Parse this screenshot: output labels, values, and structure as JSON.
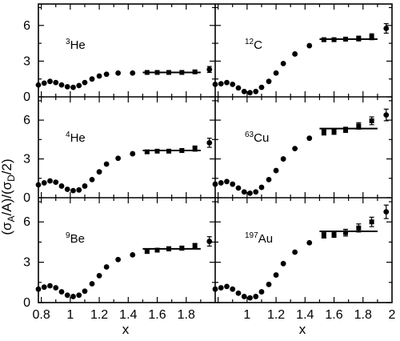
{
  "chart_data": {
    "type": "scatter",
    "layout": "3x2 grid of panels sharing axes",
    "xlabel": "x",
    "ylabel": "(σA/A)/(σD/2)",
    "ylabel_parts": {
      "open": "(σ",
      "sub1": "A",
      "mid": "/A)/(σ",
      "sub2": "D",
      "close": "/2)"
    },
    "ylim": [
      0,
      7.8
    ],
    "y_ticks": [
      0,
      3,
      6
    ],
    "x_ticks_left": [
      "0.8",
      "1",
      "1.2",
      "1.4",
      "1.6",
      "1.8"
    ],
    "x_ticks_right": [
      "1",
      "1.2",
      "1.4",
      "1.6",
      "1.8",
      "2"
    ],
    "xlim_left": [
      0.8,
      2.0
    ],
    "xlim_right": [
      0.8,
      2.0
    ],
    "x": [
      0.78,
      0.82,
      0.86,
      0.9,
      0.94,
      0.98,
      1.02,
      1.06,
      1.1,
      1.15,
      1.2,
      1.25,
      1.33,
      1.43,
      1.53,
      1.6,
      1.68,
      1.77,
      1.86,
      1.96
    ],
    "panels": [
      {
        "nucleus": "He",
        "mass_number": "3",
        "column": "left",
        "row": 0,
        "y": [
          1.0,
          1.15,
          1.3,
          1.2,
          1.0,
          0.85,
          0.8,
          0.95,
          1.2,
          1.5,
          1.75,
          1.9,
          2.0,
          2.0,
          2.05,
          2.05,
          2.05,
          2.05,
          2.1,
          2.3
        ],
        "y_err": [
          0,
          0,
          0,
          0,
          0,
          0,
          0,
          0,
          0,
          0,
          0,
          0,
          0,
          0,
          0,
          0,
          0,
          0,
          0.1,
          0.25
        ],
        "plateau": {
          "x_range": [
            1.5,
            1.9
          ],
          "value": 2.05
        }
      },
      {
        "nucleus": "C",
        "mass_number": "12",
        "column": "right",
        "row": 0,
        "y": [
          1.05,
          1.1,
          1.2,
          1.05,
          0.75,
          0.45,
          0.35,
          0.45,
          0.8,
          1.3,
          2.0,
          2.8,
          3.6,
          4.3,
          4.8,
          4.8,
          4.85,
          4.9,
          5.05,
          5.75
        ],
        "y_err": [
          0,
          0,
          0,
          0,
          0,
          0,
          0,
          0,
          0,
          0,
          0,
          0,
          0,
          0,
          0.15,
          0.15,
          0.15,
          0.2,
          0.25,
          0.4
        ],
        "plateau": {
          "x_range": [
            1.5,
            1.9
          ],
          "value": 4.85
        }
      },
      {
        "nucleus": "He",
        "mass_number": "4",
        "column": "left",
        "row": 1,
        "y": [
          1.0,
          1.15,
          1.3,
          1.2,
          0.9,
          0.65,
          0.55,
          0.6,
          0.9,
          1.4,
          2.0,
          2.6,
          3.05,
          3.4,
          3.55,
          3.6,
          3.6,
          3.65,
          3.8,
          4.25
        ],
        "y_err": [
          0,
          0,
          0,
          0,
          0,
          0,
          0,
          0,
          0,
          0,
          0,
          0,
          0,
          0,
          0.1,
          0.1,
          0.1,
          0.15,
          0.2,
          0.35
        ],
        "plateau": {
          "x_range": [
            1.5,
            1.9
          ],
          "value": 3.65
        }
      },
      {
        "nucleus": "Cu",
        "mass_number": "63",
        "column": "right",
        "row": 1,
        "y": [
          1.05,
          1.15,
          1.25,
          1.05,
          0.75,
          0.45,
          0.35,
          0.45,
          0.8,
          1.4,
          2.1,
          3.0,
          3.8,
          4.6,
          5.05,
          5.1,
          5.25,
          5.55,
          5.95,
          6.4
        ],
        "y_err": [
          0,
          0,
          0,
          0,
          0,
          0,
          0,
          0,
          0,
          0,
          0,
          0,
          0,
          0,
          0.2,
          0.2,
          0.2,
          0.25,
          0.3,
          0.45
        ],
        "plateau": {
          "x_range": [
            1.5,
            1.9
          ],
          "value": 5.35
        }
      },
      {
        "nucleus": "Be",
        "mass_number": "9",
        "column": "left",
        "row": 2,
        "y": [
          1.0,
          1.15,
          1.25,
          1.1,
          0.8,
          0.55,
          0.45,
          0.55,
          0.85,
          1.4,
          2.0,
          2.65,
          3.2,
          3.55,
          3.8,
          3.9,
          4.0,
          4.05,
          4.2,
          4.55
        ],
        "y_err": [
          0,
          0,
          0,
          0,
          0,
          0,
          0,
          0,
          0,
          0,
          0,
          0,
          0,
          0,
          0.1,
          0.1,
          0.15,
          0.15,
          0.2,
          0.35
        ],
        "plateau": {
          "x_range": [
            1.5,
            1.9
          ],
          "value": 4.0
        }
      },
      {
        "nucleus": "Au",
        "mass_number": "197",
        "column": "right",
        "row": 2,
        "y": [
          1.0,
          1.1,
          1.2,
          1.0,
          0.7,
          0.45,
          0.35,
          0.45,
          0.8,
          1.35,
          2.05,
          2.9,
          3.75,
          4.45,
          5.0,
          5.05,
          5.2,
          5.55,
          6.0,
          6.75
        ],
        "y_err": [
          0,
          0,
          0,
          0,
          0,
          0,
          0,
          0,
          0,
          0,
          0,
          0,
          0,
          0,
          0.2,
          0.2,
          0.25,
          0.3,
          0.35,
          0.5
        ],
        "plateau": {
          "x_range": [
            1.5,
            1.9
          ],
          "value": 5.3
        }
      }
    ]
  }
}
